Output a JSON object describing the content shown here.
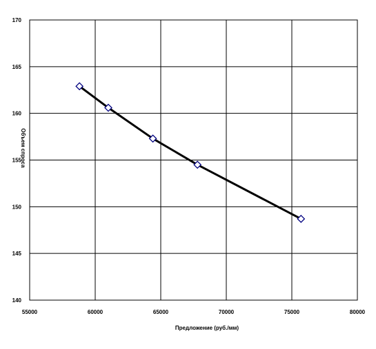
{
  "chart_data": {
    "type": "scatter",
    "title": "",
    "xlabel": "Предложение (руб./мм)",
    "ylabel": "Объем спроса",
    "xlim": [
      55000,
      80000
    ],
    "ylim": [
      140,
      170
    ],
    "x_ticks": [
      55000,
      60000,
      65000,
      70000,
      75000,
      80000
    ],
    "y_ticks": [
      140,
      145,
      150,
      155,
      160,
      165,
      170
    ],
    "grid": true,
    "legend": "none",
    "series": [
      {
        "x": [
          58800,
          61000,
          64400,
          67800,
          75700
        ],
        "y": [
          162.9,
          160.6,
          157.3,
          154.5,
          148.7
        ],
        "marker": "diamond",
        "marker_color": "#000080",
        "line_color": "#000000"
      }
    ]
  }
}
